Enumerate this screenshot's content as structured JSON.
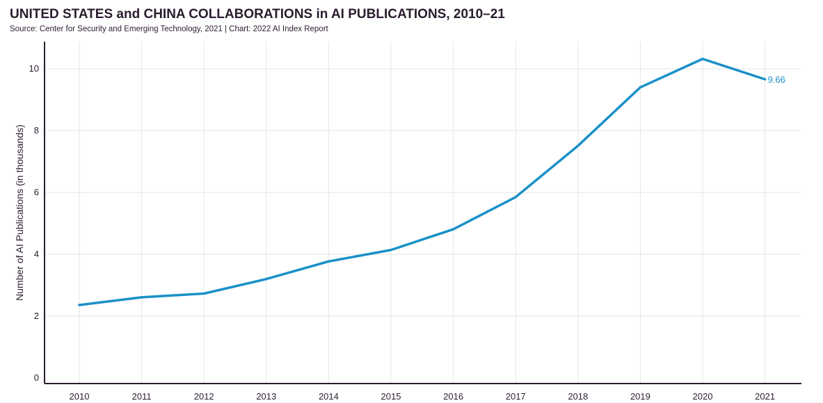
{
  "header": {
    "title": "UNITED STATES and CHINA COLLABORATIONS in AI PUBLICATIONS, 2010–21",
    "subtitle": "Source: Center for Security and Emerging Technology, 2021 | Chart: 2022 AI Index Report"
  },
  "colors": {
    "series": "#1a90c8",
    "grid": "#e6e6e6",
    "axis": "#2a1c2e"
  },
  "chart_data": {
    "type": "line",
    "title": "UNITED STATES and CHINA COLLABORATIONS in AI PUBLICATIONS, 2010–21",
    "subtitle": "Source: Center for Security and Emerging Technology, 2021 | Chart: 2022 AI Index Report",
    "xlabel": "",
    "ylabel": "Number of AI Publications (in thousands)",
    "x": [
      "2010",
      "2011",
      "2012",
      "2013",
      "2014",
      "2015",
      "2016",
      "2017",
      "2018",
      "2019",
      "2020",
      "2021"
    ],
    "series": [
      {
        "values": [
          2.36,
          2.61,
          2.73,
          3.2,
          3.77,
          4.14,
          4.81,
          5.85,
          7.51,
          9.4,
          10.32,
          9.66
        ]
      }
    ],
    "ylim": [
      0,
      11
    ],
    "yticks": [
      0,
      2,
      4,
      6,
      8,
      10
    ],
    "grid": true,
    "data_labels": [
      {
        "x": "2021",
        "text": "9.66"
      }
    ]
  }
}
